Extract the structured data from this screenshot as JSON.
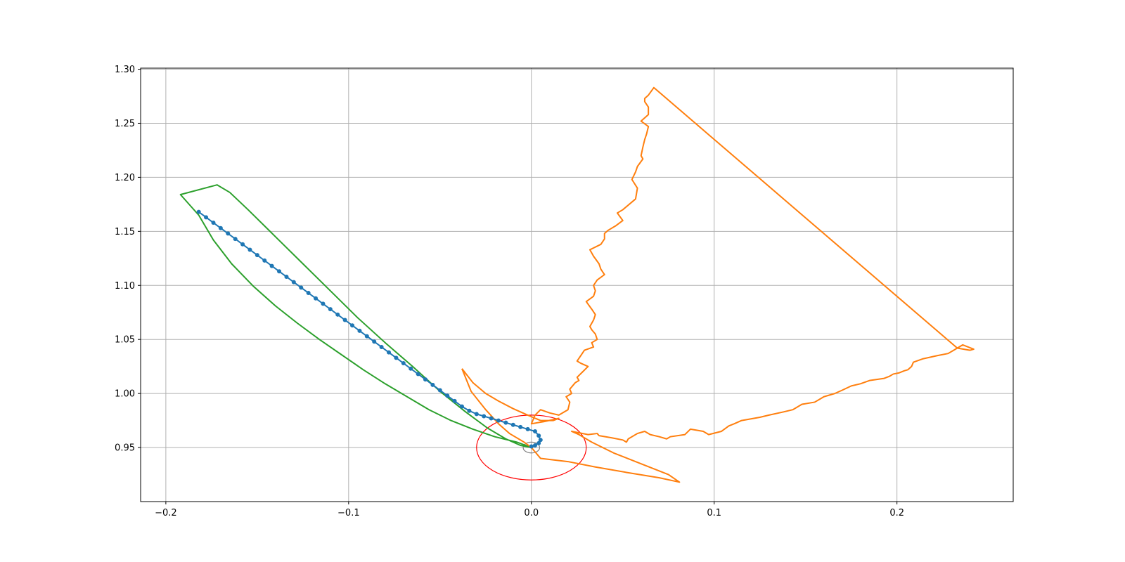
{
  "chart_data": {
    "type": "line",
    "title": "",
    "xlabel": "",
    "ylabel": "",
    "xlim": [
      -0.2138,
      0.2636
    ],
    "ylim": [
      0.9,
      1.301
    ],
    "grid": true,
    "legend": "none",
    "x_ticks": [
      {
        "value": -0.2,
        "label": "−0.2"
      },
      {
        "value": -0.1,
        "label": "−0.1"
      },
      {
        "value": 0.0,
        "label": "0.0"
      },
      {
        "value": 0.1,
        "label": "0.1"
      },
      {
        "value": 0.2,
        "label": "0.2"
      }
    ],
    "y_ticks": [
      {
        "value": 0.95,
        "label": "0.95"
      },
      {
        "value": 1.0,
        "label": "1.00"
      },
      {
        "value": 1.05,
        "label": "1.05"
      },
      {
        "value": 1.1,
        "label": "1.10"
      },
      {
        "value": 1.15,
        "label": "1.15"
      },
      {
        "value": 1.2,
        "label": "1.20"
      },
      {
        "value": 1.25,
        "label": "1.25"
      },
      {
        "value": 1.3,
        "label": "1.30"
      }
    ],
    "series": [
      {
        "color": "#2ca02c",
        "style": "line",
        "x": [
          0.0,
          -0.008,
          -0.02,
          -0.032,
          -0.044,
          -0.056,
          -0.068,
          -0.08,
          -0.092,
          -0.104,
          -0.116,
          -0.128,
          -0.14,
          -0.152,
          -0.164,
          -0.174,
          -0.182,
          -0.192,
          -0.172,
          -0.165,
          -0.155,
          -0.14,
          -0.125,
          -0.11,
          -0.095,
          -0.08,
          -0.065,
          -0.05,
          -0.036,
          -0.024,
          -0.014,
          -0.006,
          0.0
        ],
        "y": [
          0.95,
          0.955,
          0.96,
          0.967,
          0.975,
          0.985,
          0.997,
          1.009,
          1.022,
          1.036,
          1.05,
          1.065,
          1.081,
          1.099,
          1.12,
          1.142,
          1.165,
          1.184,
          1.193,
          1.186,
          1.17,
          1.145,
          1.12,
          1.095,
          1.07,
          1.047,
          1.025,
          1.002,
          0.983,
          0.968,
          0.958,
          0.952,
          0.95
        ]
      },
      {
        "color": "#1f77b4",
        "style": "line-markers",
        "x": [
          -0.182,
          -0.178,
          -0.174,
          -0.17,
          -0.166,
          -0.162,
          -0.158,
          -0.154,
          -0.15,
          -0.146,
          -0.142,
          -0.138,
          -0.134,
          -0.13,
          -0.126,
          -0.122,
          -0.118,
          -0.114,
          -0.11,
          -0.106,
          -0.102,
          -0.098,
          -0.094,
          -0.09,
          -0.086,
          -0.082,
          -0.078,
          -0.074,
          -0.07,
          -0.066,
          -0.062,
          -0.058,
          -0.054,
          -0.05,
          -0.046,
          -0.042,
          -0.038,
          -0.034,
          -0.03,
          -0.026,
          -0.022,
          -0.018,
          -0.014,
          -0.01,
          -0.006,
          -0.002,
          0.002,
          0.004,
          0.005,
          0.004,
          0.002,
          0.0
        ],
        "y": [
          1.168,
          1.163,
          1.158,
          1.153,
          1.148,
          1.143,
          1.138,
          1.133,
          1.128,
          1.123,
          1.118,
          1.113,
          1.108,
          1.103,
          1.098,
          1.093,
          1.088,
          1.083,
          1.078,
          1.073,
          1.068,
          1.063,
          1.058,
          1.053,
          1.048,
          1.043,
          1.038,
          1.033,
          1.028,
          1.023,
          1.018,
          1.013,
          1.008,
          1.003,
          0.998,
          0.993,
          0.988,
          0.984,
          0.981,
          0.979,
          0.977,
          0.975,
          0.973,
          0.971,
          0.969,
          0.967,
          0.965,
          0.961,
          0.957,
          0.954,
          0.952,
          0.951
        ]
      },
      {
        "color": "#ff7f0e",
        "style": "line",
        "x": [
          -0.038,
          -0.032,
          -0.025,
          -0.018,
          -0.01,
          -0.002,
          0.005,
          0.012,
          0.015,
          0.007,
          0.0,
          0.002,
          0.005,
          0.01,
          0.015,
          0.02,
          0.021,
          0.019,
          0.022,
          0.021,
          0.023,
          0.024,
          0.026,
          0.025,
          0.028,
          0.031,
          0.027,
          0.025,
          0.029,
          0.034,
          0.033,
          0.036,
          0.035,
          0.033,
          0.032,
          0.034,
          0.035,
          0.033,
          0.03,
          0.034,
          0.035,
          0.034,
          0.036,
          0.04,
          0.038,
          0.037,
          0.034,
          0.032,
          0.038,
          0.04,
          0.04,
          0.042,
          0.046,
          0.05,
          0.047,
          0.05,
          0.057,
          0.058,
          0.055,
          0.057,
          0.058,
          0.061,
          0.06,
          0.061,
          0.062,
          0.063,
          0.064,
          0.06,
          0.064,
          0.064,
          0.062,
          0.062,
          0.064,
          0.067,
          0.233,
          0.24,
          0.242,
          0.236,
          0.231,
          0.228,
          0.222,
          0.214,
          0.209,
          0.208,
          0.206,
          0.204,
          0.201,
          0.198,
          0.196,
          0.193,
          0.185,
          0.18,
          0.175,
          0.17,
          0.166,
          0.16,
          0.158,
          0.155,
          0.148,
          0.143,
          0.138,
          0.13,
          0.125,
          0.115,
          0.111,
          0.108,
          0.104,
          0.097,
          0.094,
          0.087,
          0.084,
          0.076,
          0.074,
          0.07,
          0.065,
          0.062,
          0.058,
          0.053,
          0.052,
          0.05,
          0.044,
          0.037,
          0.036,
          0.031,
          0.022,
          0.026,
          0.033,
          0.045,
          0.06,
          0.075,
          0.081,
          0.07,
          0.052,
          0.035,
          0.02,
          0.005,
          0.0,
          -0.004,
          -0.012,
          -0.018,
          -0.025,
          -0.033,
          -0.038
        ],
        "y": [
          1.023,
          1.01,
          1.0,
          0.993,
          0.986,
          0.98,
          0.975,
          0.975,
          0.977,
          0.974,
          0.972,
          0.98,
          0.985,
          0.982,
          0.98,
          0.985,
          0.992,
          0.997,
          1.0,
          1.004,
          1.008,
          1.01,
          1.012,
          1.015,
          1.02,
          1.025,
          1.028,
          1.03,
          1.04,
          1.043,
          1.047,
          1.05,
          1.055,
          1.059,
          1.062,
          1.068,
          1.073,
          1.078,
          1.085,
          1.09,
          1.095,
          1.1,
          1.105,
          1.11,
          1.115,
          1.12,
          1.127,
          1.133,
          1.138,
          1.143,
          1.148,
          1.151,
          1.155,
          1.16,
          1.167,
          1.17,
          1.18,
          1.19,
          1.198,
          1.205,
          1.21,
          1.217,
          1.22,
          1.228,
          1.235,
          1.24,
          1.247,
          1.252,
          1.258,
          1.265,
          1.27,
          1.273,
          1.276,
          1.283,
          1.042,
          1.04,
          1.041,
          1.045,
          1.04,
          1.037,
          1.035,
          1.032,
          1.029,
          1.025,
          1.022,
          1.021,
          1.019,
          1.018,
          1.016,
          1.014,
          1.012,
          1.009,
          1.007,
          1.003,
          1.0,
          0.997,
          0.995,
          0.992,
          0.99,
          0.985,
          0.983,
          0.98,
          0.978,
          0.975,
          0.972,
          0.97,
          0.965,
          0.962,
          0.965,
          0.967,
          0.962,
          0.96,
          0.958,
          0.96,
          0.962,
          0.965,
          0.963,
          0.958,
          0.955,
          0.957,
          0.959,
          0.961,
          0.963,
          0.962,
          0.965,
          0.962,
          0.955,
          0.945,
          0.935,
          0.925,
          0.918,
          0.922,
          0.927,
          0.932,
          0.937,
          0.94,
          0.95,
          0.955,
          0.963,
          0.972,
          0.985,
          1.002,
          1.023
        ]
      }
    ],
    "circles": [
      {
        "color": "#ff0000",
        "cx": 0.0,
        "cy": 0.95,
        "rx": 0.03,
        "ry": 0.03
      },
      {
        "color": "#808080",
        "cx": 0.0,
        "cy": 0.95,
        "rx": 0.0045,
        "ry": 0.005
      }
    ]
  }
}
